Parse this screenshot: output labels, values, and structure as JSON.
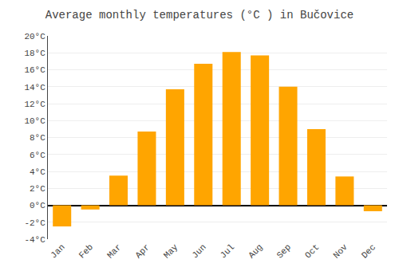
{
  "chart_data": {
    "type": "bar",
    "title": "Average monthly temperatures (°C ) in Bučovice",
    "categories": [
      "Jan",
      "Feb",
      "Mar",
      "Apr",
      "May",
      "Jun",
      "Jul",
      "Aug",
      "Sep",
      "Oct",
      "Nov",
      "Dec"
    ],
    "values": [
      -2.5,
      -0.5,
      3.5,
      8.7,
      13.7,
      16.7,
      18.1,
      17.7,
      14.0,
      9.0,
      3.4,
      -0.7
    ],
    "color": "#FFA500",
    "ylim": [
      -4,
      20
    ],
    "yticks": [
      {
        "value": -4,
        "label": "-4°C"
      },
      {
        "value": -2,
        "label": "-2°C"
      },
      {
        "value": 0,
        "label": "0°C"
      },
      {
        "value": 2,
        "label": "2°C"
      },
      {
        "value": 4,
        "label": "4°C"
      },
      {
        "value": 6,
        "label": "6°C"
      },
      {
        "value": 8,
        "label": "8°C"
      },
      {
        "value": 10,
        "label": "10°C"
      },
      {
        "value": 12,
        "label": "12°C"
      },
      {
        "value": 14,
        "label": "14°C"
      },
      {
        "value": 16,
        "label": "16°C"
      },
      {
        "value": 18,
        "label": "18°C"
      },
      {
        "value": 20,
        "label": "20°C"
      }
    ],
    "grid": true
  }
}
